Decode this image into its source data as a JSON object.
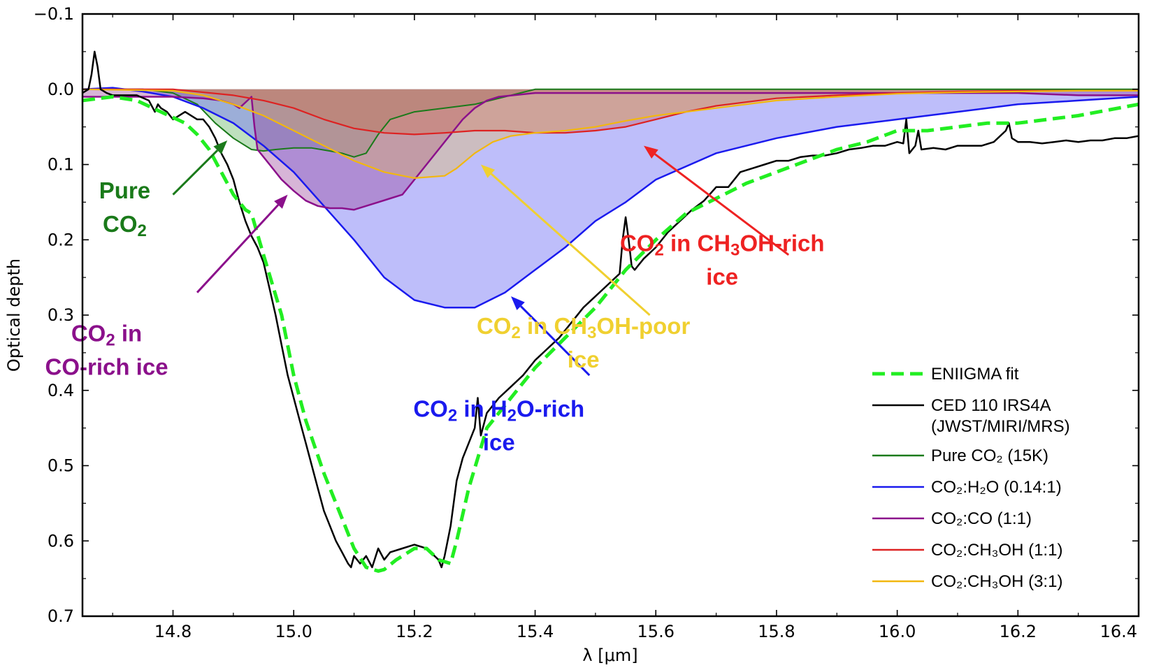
{
  "chart_data": {
    "type": "line",
    "xlabel": "λ [μm]",
    "ylabel": "Optical depth",
    "xlim": [
      14.65,
      16.4
    ],
    "ylim": [
      0.7,
      -0.1
    ],
    "y_inverted": true,
    "grid": false,
    "legend_position": "lower-right",
    "x_ticks": [
      14.8,
      15.0,
      15.2,
      15.4,
      15.6,
      15.8,
      16.0,
      16.2,
      16.4
    ],
    "x_tick_labels": [
      "14.8",
      "15.0",
      "15.2",
      "15.4",
      "15.6",
      "15.8",
      "16.0",
      "16.2",
      "16.4"
    ],
    "y_ticks": [
      -0.1,
      0.0,
      0.1,
      0.2,
      0.3,
      0.4,
      0.5,
      0.6,
      0.7
    ],
    "y_tick_labels": [
      "−0.1",
      "0.0",
      "0.1",
      "0.2",
      "0.3",
      "0.4",
      "0.5",
      "0.6",
      "0.7"
    ],
    "series": [
      {
        "key": "obs",
        "name": "CED 110 IRS4A (JWST/MIRI/MRS)",
        "legend_lines": [
          "CED 110 IRS4A",
          "(JWST/MIRI/MRS)"
        ],
        "color": "#000000",
        "style": "solid",
        "width": 2.5,
        "fill": null,
        "x": [
          14.65,
          14.66,
          14.665,
          14.67,
          14.675,
          14.68,
          14.69,
          14.7,
          14.72,
          14.74,
          14.76,
          14.77,
          14.775,
          14.78,
          14.79,
          14.8,
          14.82,
          14.84,
          14.85,
          14.86,
          14.87,
          14.88,
          14.89,
          14.9,
          14.91,
          14.92,
          14.93,
          14.94,
          14.95,
          14.96,
          14.97,
          14.98,
          14.99,
          15.0,
          15.01,
          15.02,
          15.03,
          15.04,
          15.05,
          15.06,
          15.07,
          15.08,
          15.09,
          15.095,
          15.1,
          15.11,
          15.12,
          15.13,
          15.14,
          15.15,
          15.16,
          15.18,
          15.2,
          15.22,
          15.24,
          15.245,
          15.25,
          15.255,
          15.26,
          15.265,
          15.27,
          15.28,
          15.29,
          15.3,
          15.305,
          15.31,
          15.32,
          15.33,
          15.34,
          15.36,
          15.38,
          15.4,
          15.42,
          15.44,
          15.46,
          15.48,
          15.5,
          15.52,
          15.54,
          15.545,
          15.55,
          15.555,
          15.56,
          15.565,
          15.58,
          15.6,
          15.62,
          15.64,
          15.66,
          15.68,
          15.7,
          15.72,
          15.74,
          15.76,
          15.78,
          15.8,
          15.82,
          15.84,
          15.86,
          15.88,
          15.9,
          15.92,
          15.94,
          15.96,
          15.98,
          16.0,
          16.01,
          16.015,
          16.02,
          16.03,
          16.035,
          16.04,
          16.06,
          16.08,
          16.1,
          16.12,
          16.14,
          16.16,
          16.18,
          16.185,
          16.19,
          16.2,
          16.22,
          16.24,
          16.26,
          16.28,
          16.3,
          16.32,
          16.34,
          16.36,
          16.38,
          16.4
        ],
        "y": [
          0.005,
          0.0,
          -0.02,
          -0.05,
          -0.03,
          0.0,
          0.005,
          0.008,
          0.008,
          0.008,
          0.015,
          0.03,
          0.02,
          0.025,
          0.03,
          0.04,
          0.03,
          0.04,
          0.04,
          0.05,
          0.065,
          0.085,
          0.1,
          0.12,
          0.15,
          0.175,
          0.195,
          0.21,
          0.23,
          0.265,
          0.3,
          0.34,
          0.38,
          0.41,
          0.44,
          0.47,
          0.5,
          0.53,
          0.56,
          0.58,
          0.6,
          0.615,
          0.63,
          0.635,
          0.62,
          0.63,
          0.62,
          0.635,
          0.61,
          0.625,
          0.615,
          0.61,
          0.605,
          0.61,
          0.625,
          0.635,
          0.62,
          0.6,
          0.58,
          0.55,
          0.52,
          0.49,
          0.47,
          0.45,
          0.41,
          0.46,
          0.43,
          0.42,
          0.41,
          0.395,
          0.38,
          0.36,
          0.345,
          0.33,
          0.31,
          0.29,
          0.275,
          0.26,
          0.245,
          0.2,
          0.17,
          0.2,
          0.235,
          0.24,
          0.225,
          0.21,
          0.19,
          0.175,
          0.16,
          0.148,
          0.13,
          0.13,
          0.11,
          0.105,
          0.1,
          0.095,
          0.095,
          0.09,
          0.088,
          0.088,
          0.085,
          0.08,
          0.078,
          0.075,
          0.075,
          0.07,
          0.072,
          0.04,
          0.085,
          0.075,
          0.055,
          0.08,
          0.078,
          0.08,
          0.075,
          0.075,
          0.075,
          0.07,
          0.055,
          0.045,
          0.065,
          0.07,
          0.07,
          0.072,
          0.07,
          0.068,
          0.07,
          0.068,
          0.068,
          0.065,
          0.065,
          0.062
        ]
      },
      {
        "key": "fit",
        "name": "ENIIGMA fit",
        "legend_lines": [
          "ENIIGMA fit"
        ],
        "color": "#22ee22",
        "style": "dashed",
        "width": 5,
        "fill": null,
        "x": [
          14.65,
          14.7,
          14.74,
          14.78,
          14.82,
          14.84,
          14.86,
          14.88,
          14.9,
          14.92,
          14.93,
          14.95,
          14.98,
          15.0,
          15.02,
          15.05,
          15.08,
          15.1,
          15.12,
          15.14,
          15.15,
          15.17,
          15.2,
          15.22,
          15.24,
          15.26,
          15.27,
          15.29,
          15.32,
          15.36,
          15.4,
          15.45,
          15.5,
          15.55,
          15.6,
          15.65,
          15.7,
          15.75,
          15.8,
          15.85,
          15.9,
          15.95,
          16.0,
          16.05,
          16.1,
          16.15,
          16.2,
          16.3,
          16.4
        ],
        "y": [
          0.015,
          0.01,
          0.015,
          0.03,
          0.045,
          0.06,
          0.08,
          0.11,
          0.14,
          0.16,
          0.165,
          0.22,
          0.3,
          0.38,
          0.44,
          0.51,
          0.57,
          0.61,
          0.635,
          0.64,
          0.638,
          0.625,
          0.61,
          0.61,
          0.625,
          0.63,
          0.6,
          0.53,
          0.45,
          0.41,
          0.37,
          0.33,
          0.29,
          0.24,
          0.2,
          0.165,
          0.145,
          0.125,
          0.11,
          0.095,
          0.08,
          0.07,
          0.055,
          0.055,
          0.05,
          0.045,
          0.045,
          0.035,
          0.02
        ]
      },
      {
        "key": "pure",
        "name": "Pure CO₂ (15K)",
        "legend_lines": [
          "Pure CO₂ (15K)"
        ],
        "color": "#1a7a1a",
        "style": "solid",
        "width": 2,
        "fill": "rgba(70,165,70,0.35)",
        "x": [
          14.65,
          14.75,
          14.8,
          14.84,
          14.87,
          14.9,
          14.93,
          14.95,
          14.97,
          15.0,
          15.03,
          15.06,
          15.08,
          15.1,
          15.12,
          15.14,
          15.16,
          15.2,
          15.3,
          15.4,
          16.4
        ],
        "y": [
          0.0,
          0.0,
          0.005,
          0.02,
          0.045,
          0.065,
          0.08,
          0.082,
          0.08,
          0.078,
          0.078,
          0.082,
          0.085,
          0.09,
          0.085,
          0.06,
          0.04,
          0.03,
          0.02,
          0.0,
          0.0
        ]
      },
      {
        "key": "h2o",
        "name": "CO₂:H₂O (0.14:1)",
        "legend_lines": [
          "CO₂:H₂O (0.14:1)"
        ],
        "color": "#1a1aee",
        "style": "solid",
        "width": 2.5,
        "fill": "rgba(120,120,245,0.48)",
        "x": [
          14.65,
          14.7,
          14.75,
          14.8,
          14.85,
          14.9,
          14.95,
          15.0,
          15.05,
          15.1,
          15.15,
          15.2,
          15.25,
          15.3,
          15.35,
          15.4,
          15.45,
          15.5,
          15.55,
          15.6,
          15.7,
          15.8,
          15.9,
          16.0,
          16.1,
          16.2,
          16.3,
          16.4
        ],
        "y": [
          0.0,
          -0.002,
          0.003,
          0.01,
          0.025,
          0.045,
          0.075,
          0.11,
          0.155,
          0.2,
          0.25,
          0.28,
          0.29,
          0.29,
          0.27,
          0.24,
          0.21,
          0.175,
          0.15,
          0.12,
          0.085,
          0.065,
          0.05,
          0.04,
          0.03,
          0.02,
          0.015,
          0.01
        ]
      },
      {
        "key": "co",
        "name": "CO₂:CO (1:1)",
        "legend_lines": [
          "CO₂:CO (1:1)"
        ],
        "color": "#8b108b",
        "style": "solid",
        "width": 2.5,
        "fill": "rgba(150,60,150,0.38)",
        "x": [
          14.65,
          14.75,
          14.8,
          14.85,
          14.88,
          14.9,
          14.91,
          14.93,
          14.935,
          14.94,
          14.96,
          14.98,
          15.0,
          15.02,
          15.04,
          15.06,
          15.08,
          15.1,
          15.12,
          15.14,
          15.16,
          15.18,
          15.2,
          15.22,
          15.24,
          15.26,
          15.28,
          15.3,
          15.32,
          15.34,
          15.4,
          15.5,
          15.6,
          15.7,
          15.8,
          15.9,
          16.0,
          16.1,
          16.2,
          16.3,
          16.4
        ],
        "y": [
          0.01,
          0.01,
          0.01,
          0.012,
          0.015,
          0.02,
          0.025,
          0.01,
          0.05,
          0.08,
          0.1,
          0.12,
          0.135,
          0.148,
          0.155,
          0.158,
          0.158,
          0.16,
          0.155,
          0.15,
          0.145,
          0.14,
          0.12,
          0.1,
          0.08,
          0.06,
          0.04,
          0.025,
          0.015,
          0.01,
          0.005,
          0.005,
          0.005,
          0.005,
          0.005,
          0.005,
          0.005,
          0.005,
          0.005,
          0.008,
          0.008
        ]
      },
      {
        "key": "ch3ohrich",
        "name": "CO₂:CH₃OH (1:1)",
        "legend_lines": [
          "CO₂:CH₃OH (1:1)"
        ],
        "color": "#dd2222",
        "style": "solid",
        "width": 2.2,
        "fill": "rgba(200,70,70,0.3)",
        "x": [
          14.65,
          14.8,
          14.9,
          14.95,
          15.0,
          15.05,
          15.1,
          15.15,
          15.2,
          15.25,
          15.3,
          15.35,
          15.4,
          15.45,
          15.5,
          15.55,
          15.6,
          15.65,
          15.7,
          15.8,
          15.9,
          16.0,
          16.1,
          16.2,
          16.3,
          16.4
        ],
        "y": [
          0.0,
          0.0,
          0.008,
          0.015,
          0.025,
          0.04,
          0.052,
          0.058,
          0.06,
          0.058,
          0.055,
          0.055,
          0.058,
          0.058,
          0.055,
          0.05,
          0.04,
          0.03,
          0.022,
          0.012,
          0.008,
          0.005,
          0.003,
          0.002,
          0.002,
          0.002
        ]
      },
      {
        "key": "ch3ohpoor",
        "name": "CO₂:CH₃OH (3:1)",
        "legend_lines": [
          "CO₂:CH₃OH (3:1)"
        ],
        "color": "#f2b70f",
        "style": "solid",
        "width": 2.2,
        "fill": "rgba(240,190,60,0.3)",
        "x": [
          14.65,
          14.8,
          14.85,
          14.9,
          14.95,
          15.0,
          15.05,
          15.1,
          15.15,
          15.2,
          15.25,
          15.27,
          15.3,
          15.33,
          15.36,
          15.4,
          15.45,
          15.5,
          15.55,
          15.6,
          15.7,
          15.8,
          15.9,
          16.0,
          16.1,
          16.2,
          16.3,
          16.4
        ],
        "y": [
          0.0,
          0.002,
          0.008,
          0.02,
          0.035,
          0.055,
          0.075,
          0.095,
          0.11,
          0.118,
          0.115,
          0.105,
          0.085,
          0.07,
          0.062,
          0.058,
          0.055,
          0.05,
          0.042,
          0.035,
          0.025,
          0.015,
          0.01,
          0.006,
          0.004,
          0.003,
          0.002,
          0.002
        ]
      }
    ],
    "annotations": [
      {
        "key": "pure",
        "lines": [
          [
            "Pure"
          ],
          [
            "CO",
            "2",
            ""
          ]
        ],
        "color": "#1a7a1a",
        "text_at": [
          14.72,
          0.145
        ],
        "arrow_from": [
          14.8,
          0.14
        ],
        "arrow_to": [
          14.89,
          0.068
        ]
      },
      {
        "key": "co",
        "lines": [
          [
            "CO",
            "2",
            " in"
          ],
          [
            "CO-rich ice"
          ]
        ],
        "color": "#8b108b",
        "text_at": [
          14.69,
          0.335
        ],
        "arrow_from": [
          14.84,
          0.27
        ],
        "arrow_to": [
          14.99,
          0.14
        ]
      },
      {
        "key": "h2o",
        "lines": [
          [
            "CO",
            "2",
            " in H",
            "2",
            "O-rich"
          ],
          [
            "ice"
          ]
        ],
        "color": "#1a1aee",
        "text_at": [
          15.34,
          0.435
        ],
        "arrow_from": [
          15.49,
          0.38
        ],
        "arrow_to": [
          15.36,
          0.275
        ]
      },
      {
        "key": "ch3ohpoor",
        "lines": [
          [
            "CO",
            "2",
            " in CH",
            "3",
            "OH-poor"
          ],
          [
            "ice"
          ]
        ],
        "color": "#f0d030",
        "text_at": [
          15.48,
          0.325
        ],
        "arrow_from": [
          15.59,
          0.3
        ],
        "arrow_to": [
          15.31,
          0.1
        ]
      },
      {
        "key": "ch3ohrich",
        "lines": [
          [
            "CO",
            "2",
            " in CH",
            "3",
            "OH-rich"
          ],
          [
            "ice"
          ]
        ],
        "color": "#ee2222",
        "text_at": [
          15.71,
          0.215
        ],
        "arrow_from": [
          15.82,
          0.22
        ],
        "arrow_to": [
          15.58,
          0.075
        ]
      }
    ]
  }
}
